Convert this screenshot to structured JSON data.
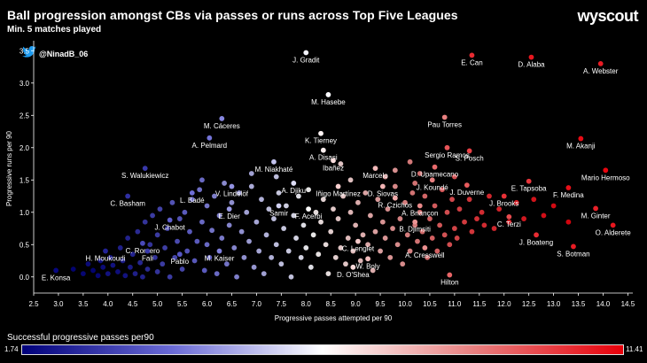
{
  "header": {
    "title": "Ball progression amongst CBs via passes or runs across Top Five Leagues",
    "subtitle": "Min. 5 matches played",
    "brand": "wyscout",
    "handle": "@NinadB_06"
  },
  "colorbar": {
    "label": "Successful progressive passes per90",
    "min": "1.74",
    "max": "11.41",
    "colors": [
      "#00007a",
      "#6b6bd6",
      "#ffffff",
      "#e88080",
      "#e8000a"
    ]
  },
  "chart_data": {
    "type": "scatter",
    "xlabel": "Progressive passes attempted per 90",
    "ylabel": "Progressive runs per 90",
    "xlim": [
      2.5,
      14.6
    ],
    "ylim": [
      -0.25,
      3.6
    ],
    "xticks": [
      "2.5",
      "3.0",
      "3.5",
      "4.0",
      "4.5",
      "5.0",
      "5.5",
      "6.0",
      "6.5",
      "7.0",
      "7.5",
      "8.0",
      "8.5",
      "9.0",
      "9.5",
      "10.0",
      "10.5",
      "11.0",
      "11.5",
      "12.0",
      "12.5",
      "13.0",
      "13.5",
      "14.0",
      "14.5"
    ],
    "yticks": [
      "0.0",
      "0.5",
      "1.0",
      "1.5",
      "2.0",
      "2.5",
      "3.0",
      "3.5"
    ],
    "labelled": [
      {
        "name": "J. Gradit",
        "x": 8.0,
        "y": 3.47,
        "c": 6.4
      },
      {
        "name": "E. Can",
        "x": 11.35,
        "y": 3.43,
        "c": 10.6
      },
      {
        "name": "D. Alaba",
        "x": 12.55,
        "y": 3.4,
        "c": 11.0
      },
      {
        "name": "A. Webster",
        "x": 13.95,
        "y": 3.3,
        "c": 10.9
      },
      {
        "name": "M. Hasebe",
        "x": 8.45,
        "y": 2.82,
        "c": 6.5
      },
      {
        "name": "Pau Torres",
        "x": 10.8,
        "y": 2.47,
        "c": 9.0
      },
      {
        "name": "M. Cáceres",
        "x": 6.3,
        "y": 2.45,
        "c": 4.6
      },
      {
        "name": "K. Tierney",
        "x": 8.3,
        "y": 2.22,
        "c": 6.8
      },
      {
        "name": "M. Akanji",
        "x": 13.55,
        "y": 2.14,
        "c": 11.2
      },
      {
        "name": "A. Pelmard",
        "x": 6.05,
        "y": 2.15,
        "c": 4.3
      },
      {
        "name": "Sergio Ramos",
        "x": 10.85,
        "y": 2.0,
        "c": 9.8
      },
      {
        "name": "A. Disasi",
        "x": 8.35,
        "y": 1.96,
        "c": 6.9
      },
      {
        "name": "S. Posch",
        "x": 11.3,
        "y": 1.95,
        "c": 10.2
      },
      {
        "name": "Mario Hermoso",
        "x": 14.05,
        "y": 1.65,
        "c": 11.3
      },
      {
        "name": "Ibañez",
        "x": 8.55,
        "y": 1.8,
        "c": 7.2
      },
      {
        "name": "M. Niakhaté",
        "x": 7.35,
        "y": 1.78,
        "c": 5.6
      },
      {
        "name": "Marcelo",
        "x": 9.4,
        "y": 1.68,
        "c": 7.9
      },
      {
        "name": "D. Upamecano",
        "x": 10.6,
        "y": 1.7,
        "c": 9.4
      },
      {
        "name": "S. Walukiewicz",
        "x": 4.75,
        "y": 1.68,
        "c": 3.0
      },
      {
        "name": "E. Tapsoba",
        "x": 12.5,
        "y": 1.48,
        "c": 10.4
      },
      {
        "name": "J. Koundé",
        "x": 10.55,
        "y": 1.5,
        "c": 9.0
      },
      {
        "name": "V. Lindelöf",
        "x": 6.5,
        "y": 1.4,
        "c": 4.8
      },
      {
        "name": "A. Djiku",
        "x": 7.75,
        "y": 1.45,
        "c": 6.0
      },
      {
        "name": "J. Duverne",
        "x": 11.25,
        "y": 1.42,
        "c": 9.7
      },
      {
        "name": "Iñigo Martínez",
        "x": 8.65,
        "y": 1.4,
        "c": 7.5
      },
      {
        "name": "D. Siovas",
        "x": 9.55,
        "y": 1.4,
        "c": 8.0
      },
      {
        "name": "F. Medina",
        "x": 13.3,
        "y": 1.38,
        "c": 11.1
      },
      {
        "name": "L. Badé",
        "x": 5.7,
        "y": 1.3,
        "c": 4.2
      },
      {
        "name": "C. Basham",
        "x": 4.4,
        "y": 1.25,
        "c": 2.8
      },
      {
        "name": "R. Czichos",
        "x": 9.8,
        "y": 1.22,
        "c": 8.2
      },
      {
        "name": "J. Brooks",
        "x": 12.0,
        "y": 1.25,
        "c": 10.5
      },
      {
        "name": "Samir",
        "x": 7.45,
        "y": 1.1,
        "c": 5.8
      },
      {
        "name": "A. Briançon",
        "x": 10.3,
        "y": 1.1,
        "c": 8.8
      },
      {
        "name": "M. Ginter",
        "x": 13.85,
        "y": 1.06,
        "c": 10.8
      },
      {
        "name": "E. Dier",
        "x": 6.45,
        "y": 1.05,
        "c": 4.9
      },
      {
        "name": "F. Acerbi",
        "x": 8.05,
        "y": 1.05,
        "c": 6.6
      },
      {
        "name": "B. Djimsiti",
        "x": 10.2,
        "y": 0.85,
        "c": 8.6
      },
      {
        "name": "C. Terzi",
        "x": 12.1,
        "y": 0.93,
        "c": 10.0
      },
      {
        "name": "J. Chabot",
        "x": 5.25,
        "y": 0.88,
        "c": 3.9
      },
      {
        "name": "O. Alderete",
        "x": 14.2,
        "y": 0.8,
        "c": 11.0
      },
      {
        "name": "J. Boateng",
        "x": 12.65,
        "y": 0.65,
        "c": 10.6
      },
      {
        "name": "C. Romero",
        "x": 4.7,
        "y": 0.52,
        "c": 3.4
      },
      {
        "name": "C. Lenglet",
        "x": 9.05,
        "y": 0.55,
        "c": 7.6
      },
      {
        "name": "H. Moukoudi",
        "x": 3.95,
        "y": 0.4,
        "c": 2.5
      },
      {
        "name": "Fali",
        "x": 4.8,
        "y": 0.4,
        "c": 3.0
      },
      {
        "name": "Pablo",
        "x": 5.45,
        "y": 0.35,
        "c": 3.7
      },
      {
        "name": "M. Kaiser",
        "x": 6.25,
        "y": 0.4,
        "c": 4.5
      },
      {
        "name": "A. Cresswell",
        "x": 10.4,
        "y": 0.45,
        "c": 8.7
      },
      {
        "name": "W. Boly",
        "x": 9.25,
        "y": 0.28,
        "c": 7.8
      },
      {
        "name": "S. Botman",
        "x": 13.4,
        "y": 0.47,
        "c": 10.9
      },
      {
        "name": "D. O'Shea",
        "x": 8.95,
        "y": 0.15,
        "c": 7.3
      },
      {
        "name": "E. Konsa",
        "x": 2.95,
        "y": 0.1,
        "c": 1.9
      },
      {
        "name": "Hilton",
        "x": 10.9,
        "y": 0.03,
        "c": 9.5
      }
    ],
    "unlabelled": [
      [
        3.3,
        0.12,
        1.8
      ],
      [
        3.5,
        0.05,
        1.9
      ],
      [
        3.6,
        0.2,
        2.0
      ],
      [
        3.7,
        0.1,
        1.8
      ],
      [
        3.8,
        0.02,
        1.9
      ],
      [
        3.85,
        0.25,
        2.1
      ],
      [
        3.9,
        0.15,
        2.0
      ],
      [
        4.0,
        0.05,
        2.2
      ],
      [
        4.05,
        0.3,
        2.3
      ],
      [
        4.1,
        0.18,
        2.2
      ],
      [
        4.2,
        0.08,
        2.1
      ],
      [
        4.25,
        0.45,
        2.5
      ],
      [
        4.3,
        0.25,
        2.4
      ],
      [
        4.35,
        0.02,
        2.2
      ],
      [
        4.4,
        0.6,
        2.6
      ],
      [
        4.45,
        0.15,
        2.4
      ],
      [
        4.5,
        0.35,
        2.6
      ],
      [
        4.55,
        0.05,
        2.5
      ],
      [
        4.6,
        0.7,
        2.8
      ],
      [
        4.65,
        0.22,
        2.7
      ],
      [
        4.7,
        0.0,
        2.6
      ],
      [
        4.75,
        0.85,
        3.0
      ],
      [
        4.8,
        0.12,
        2.8
      ],
      [
        4.85,
        0.5,
        3.0
      ],
      [
        4.9,
        0.95,
        3.2
      ],
      [
        4.95,
        0.3,
        3.0
      ],
      [
        5.0,
        0.08,
        3.0
      ],
      [
        5.0,
        0.65,
        3.2
      ],
      [
        5.05,
        1.05,
        3.4
      ],
      [
        5.1,
        0.2,
        3.2
      ],
      [
        5.15,
        0.45,
        3.3
      ],
      [
        5.2,
        0.75,
        3.5
      ],
      [
        5.25,
        0.0,
        3.2
      ],
      [
        5.3,
        1.15,
        3.8
      ],
      [
        5.35,
        0.3,
        3.5
      ],
      [
        5.4,
        0.55,
        3.6
      ],
      [
        5.45,
        0.9,
        3.8
      ],
      [
        5.5,
        0.12,
        3.5
      ],
      [
        5.55,
        1.0,
        4.0
      ],
      [
        5.6,
        0.4,
        3.8
      ],
      [
        5.65,
        0.7,
        4.0
      ],
      [
        5.7,
        1.2,
        4.2
      ],
      [
        5.75,
        0.25,
        3.9
      ],
      [
        5.8,
        0.55,
        4.0
      ],
      [
        5.85,
        1.35,
        4.4
      ],
      [
        5.9,
        0.85,
        4.3
      ],
      [
        5.95,
        0.1,
        4.0
      ],
      [
        6.0,
        0.5,
        4.3
      ],
      [
        6.0,
        1.1,
        4.5
      ],
      [
        6.05,
        0.3,
        4.2
      ],
      [
        6.1,
        0.72,
        4.5
      ],
      [
        6.15,
        1.25,
        4.7
      ],
      [
        6.2,
        0.05,
        4.3
      ],
      [
        6.25,
        0.95,
        4.7
      ],
      [
        6.3,
        0.6,
        4.6
      ],
      [
        6.35,
        1.45,
        4.9
      ],
      [
        6.4,
        0.2,
        4.5
      ],
      [
        6.45,
        0.8,
        4.8
      ],
      [
        6.5,
        1.15,
        5.0
      ],
      [
        6.55,
        0.45,
        4.8
      ],
      [
        6.6,
        0.0,
        4.7
      ],
      [
        6.65,
        1.3,
        5.2
      ],
      [
        6.7,
        0.7,
        5.0
      ],
      [
        6.75,
        0.3,
        5.0
      ],
      [
        6.8,
        1.0,
        5.3
      ],
      [
        6.85,
        0.55,
        5.2
      ],
      [
        6.9,
        1.4,
        5.5
      ],
      [
        6.95,
        0.15,
        5.1
      ],
      [
        7.0,
        0.85,
        5.4
      ],
      [
        7.05,
        0.4,
        5.4
      ],
      [
        7.1,
        1.2,
        5.6
      ],
      [
        7.15,
        0.05,
        5.3
      ],
      [
        7.2,
        0.65,
        5.6
      ],
      [
        7.25,
        1.05,
        5.8
      ],
      [
        7.3,
        0.3,
        5.6
      ],
      [
        7.35,
        0.9,
        5.8
      ],
      [
        7.4,
        0.5,
        5.8
      ],
      [
        7.45,
        1.3,
        6.0
      ],
      [
        7.5,
        0.2,
        5.8
      ],
      [
        7.55,
        0.75,
        6.0
      ],
      [
        7.6,
        1.1,
        6.1
      ],
      [
        7.65,
        0.4,
        6.0
      ],
      [
        7.7,
        0.0,
        5.9
      ],
      [
        7.75,
        0.95,
        6.2
      ],
      [
        7.8,
        0.6,
        6.2
      ],
      [
        7.85,
        1.25,
        6.4
      ],
      [
        7.9,
        0.3,
        6.2
      ],
      [
        7.95,
        0.8,
        6.4
      ],
      [
        8.0,
        0.45,
        6.5
      ],
      [
        8.05,
        1.35,
        6.6
      ],
      [
        8.1,
        0.15,
        6.4
      ],
      [
        8.15,
        0.65,
        6.6
      ],
      [
        8.2,
        1.0,
        6.8
      ],
      [
        8.25,
        0.35,
        6.7
      ],
      [
        8.3,
        0.85,
        6.9
      ],
      [
        8.35,
        1.2,
        7.0
      ],
      [
        8.4,
        0.5,
        6.9
      ],
      [
        8.45,
        0.05,
        6.8
      ],
      [
        8.5,
        0.7,
        7.1
      ],
      [
        8.55,
        1.05,
        7.2
      ],
      [
        8.6,
        0.3,
        7.1
      ],
      [
        8.65,
        0.9,
        7.3
      ],
      [
        8.7,
        0.45,
        7.3
      ],
      [
        8.75,
        1.25,
        7.4
      ],
      [
        8.8,
        0.2,
        7.3
      ],
      [
        8.85,
        0.6,
        7.5
      ],
      [
        8.9,
        1.0,
        7.6
      ],
      [
        8.95,
        0.4,
        7.5
      ],
      [
        9.0,
        0.8,
        7.7
      ],
      [
        9.05,
        1.15,
        7.8
      ],
      [
        9.1,
        0.25,
        7.6
      ],
      [
        9.15,
        0.65,
        7.8
      ],
      [
        9.2,
        1.3,
        8.0
      ],
      [
        9.25,
        0.5,
        7.9
      ],
      [
        9.3,
        0.95,
        8.0
      ],
      [
        9.35,
        0.1,
        7.8
      ],
      [
        9.4,
        0.7,
        8.1
      ],
      [
        9.45,
        1.2,
        8.2
      ],
      [
        9.5,
        0.4,
        8.1
      ],
      [
        9.55,
        0.85,
        8.3
      ],
      [
        9.6,
        0.6,
        8.3
      ],
      [
        9.65,
        1.05,
        8.4
      ],
      [
        9.7,
        0.3,
        8.3
      ],
      [
        9.75,
        0.75,
        8.5
      ],
      [
        9.8,
        1.4,
        8.6
      ],
      [
        9.85,
        0.5,
        8.5
      ],
      [
        9.9,
        0.9,
        8.7
      ],
      [
        9.95,
        0.2,
        8.5
      ],
      [
        10.0,
        1.15,
        8.8
      ],
      [
        10.05,
        0.65,
        8.8
      ],
      [
        10.1,
        0.4,
        8.7
      ],
      [
        10.15,
        1.3,
        9.0
      ],
      [
        10.2,
        0.8,
        9.0
      ],
      [
        10.25,
        0.55,
        9.0
      ],
      [
        10.3,
        1.0,
        9.2
      ],
      [
        10.35,
        0.7,
        9.2
      ],
      [
        10.4,
        1.25,
        9.3
      ],
      [
        10.45,
        0.3,
        9.1
      ],
      [
        10.5,
        0.9,
        9.4
      ],
      [
        10.55,
        0.6,
        9.4
      ],
      [
        10.6,
        1.1,
        9.5
      ],
      [
        10.65,
        0.4,
        9.4
      ],
      [
        10.7,
        0.8,
        9.6
      ],
      [
        10.75,
        1.35,
        9.7
      ],
      [
        10.8,
        0.65,
        9.7
      ],
      [
        10.85,
        1.0,
        9.8
      ],
      [
        10.9,
        0.5,
        9.8
      ],
      [
        10.95,
        1.2,
        9.9
      ],
      [
        11.0,
        0.75,
        10.0
      ],
      [
        11.05,
        0.6,
        10.0
      ],
      [
        11.1,
        1.05,
        10.1
      ],
      [
        11.2,
        0.85,
        10.2
      ],
      [
        11.3,
        1.2,
        10.3
      ],
      [
        11.35,
        0.7,
        10.3
      ],
      [
        11.45,
        0.9,
        10.4
      ],
      [
        11.55,
        1.0,
        10.5
      ],
      [
        11.6,
        0.8,
        10.5
      ],
      [
        11.7,
        1.25,
        10.6
      ],
      [
        11.8,
        0.75,
        10.6
      ],
      [
        11.9,
        1.05,
        10.7
      ],
      [
        12.1,
        0.85,
        10.8
      ],
      [
        12.25,
        1.15,
        10.9
      ],
      [
        12.4,
        0.9,
        10.9
      ],
      [
        12.6,
        1.2,
        11.0
      ],
      [
        12.8,
        0.95,
        11.1
      ],
      [
        13.0,
        1.1,
        11.2
      ],
      [
        13.3,
        0.85,
        11.3
      ],
      [
        10.2,
        1.45,
        9.0
      ],
      [
        9.6,
        1.55,
        8.2
      ],
      [
        10.3,
        1.6,
        9.1
      ],
      [
        11.0,
        1.55,
        9.8
      ],
      [
        8.9,
        1.5,
        7.4
      ],
      [
        7.4,
        1.55,
        5.8
      ],
      [
        6.9,
        1.6,
        5.3
      ],
      [
        5.9,
        1.5,
        4.3
      ],
      [
        8.7,
        1.75,
        7.3
      ],
      [
        10.1,
        1.78,
        8.9
      ],
      [
        9.8,
        1.65,
        8.4
      ]
    ]
  }
}
